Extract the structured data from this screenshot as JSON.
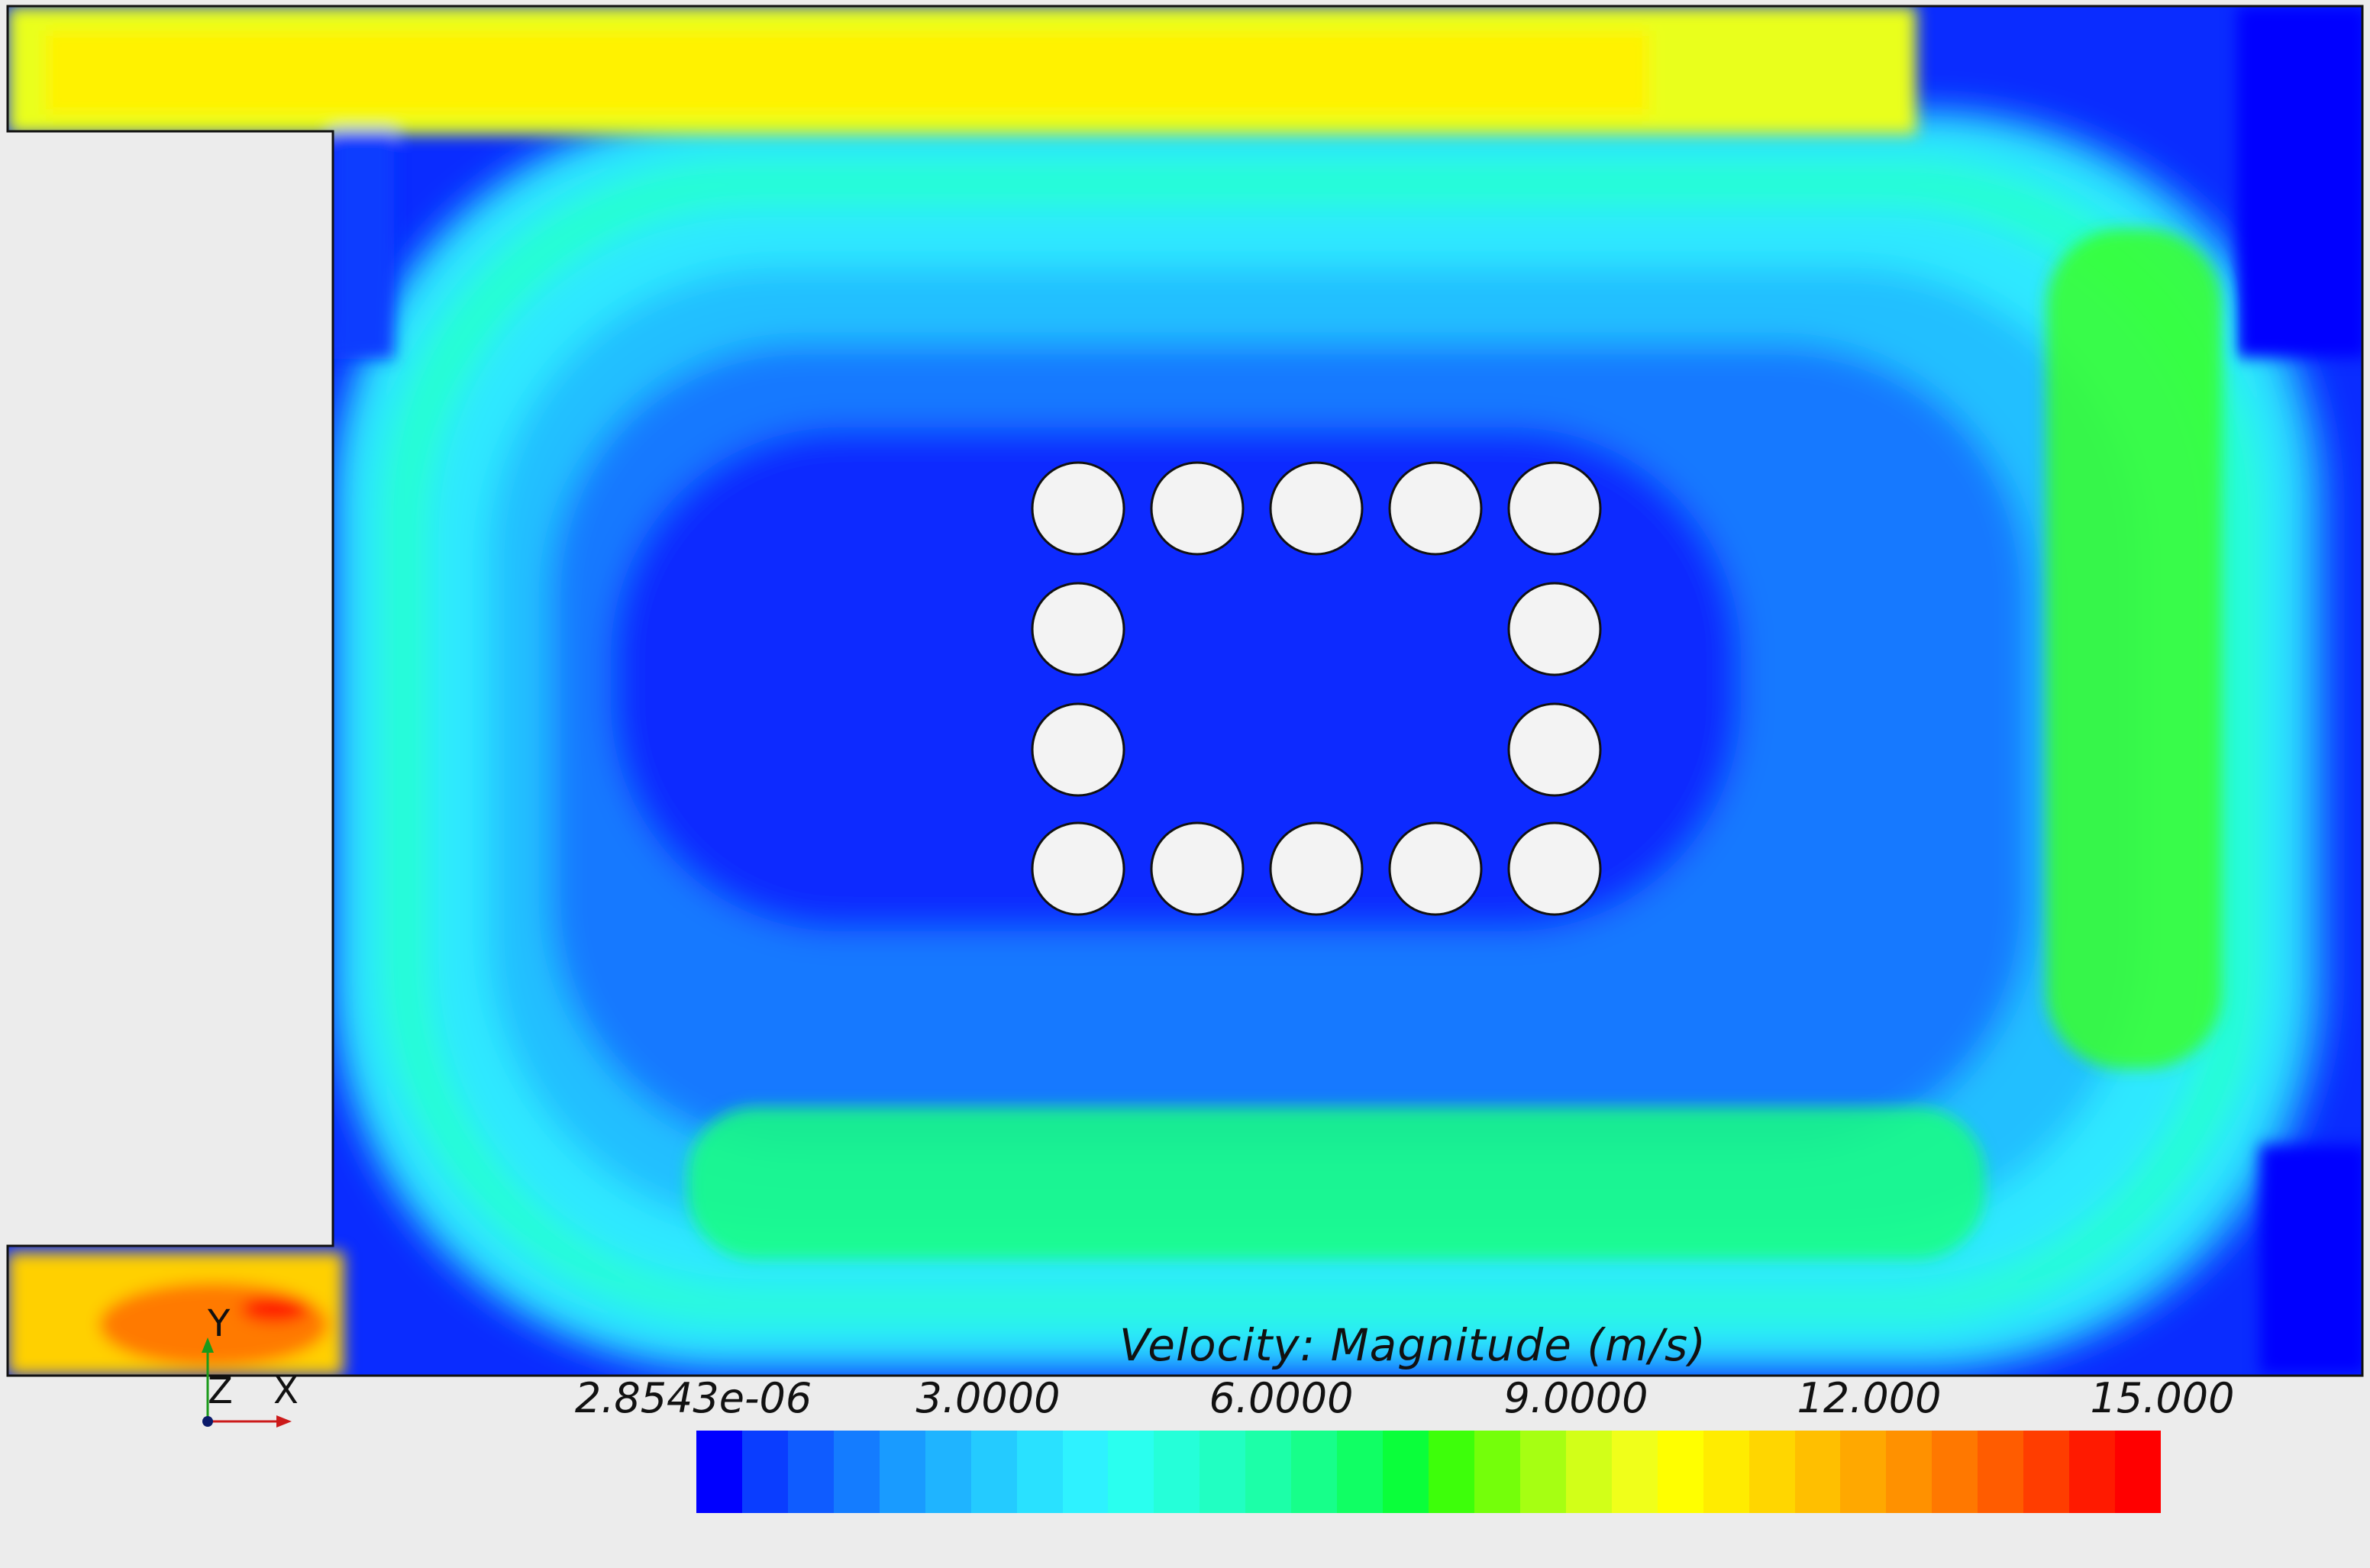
{
  "legend": {
    "title": "Velocity: Magnitude (m/s)",
    "ticks": [
      "2.8543e-06",
      "3.0000",
      "6.0000",
      "9.0000",
      "12.000",
      "15.000"
    ],
    "colors": [
      "#0000ff",
      "#0a3dff",
      "#0f5cff",
      "#147cff",
      "#199bff",
      "#1fb4ff",
      "#24cbff",
      "#29e1ff",
      "#2ef2ff",
      "#2affef",
      "#25ffd9",
      "#21ffc2",
      "#1cffa8",
      "#17ff8a",
      "#10ff64",
      "#0aff3a",
      "#3dff0a",
      "#74ff0a",
      "#a6ff12",
      "#d2ff18",
      "#f0ff1a",
      "#ffff00",
      "#ffec00",
      "#ffd600",
      "#ffbf00",
      "#ffa800",
      "#ff9100",
      "#ff7800",
      "#ff5c00",
      "#ff3d00",
      "#ff1a00",
      "#ff0000"
    ]
  },
  "axes": {
    "x": "X",
    "y": "Y",
    "z": "Z"
  },
  "colors": {
    "background": "#ececec",
    "obstacle": "#f3f3f3",
    "outline": "#111111"
  }
}
